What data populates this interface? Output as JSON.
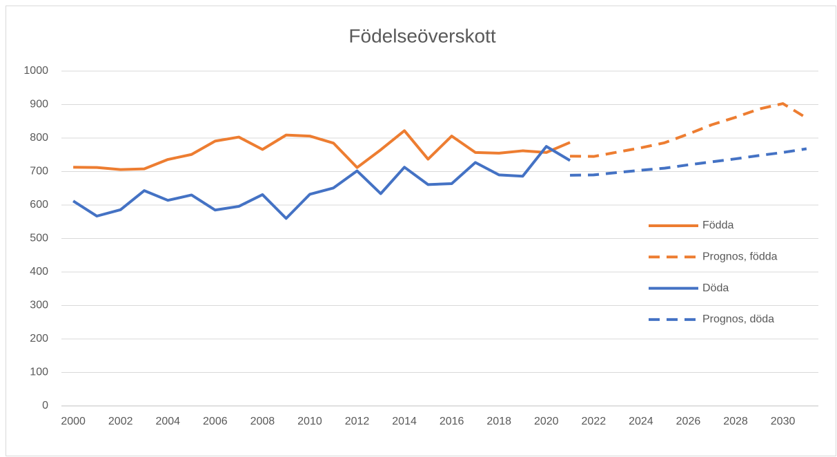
{
  "chart_data": {
    "type": "line",
    "title": "Födelseöverskott",
    "x": [
      2000,
      2001,
      2002,
      2003,
      2004,
      2005,
      2006,
      2007,
      2008,
      2009,
      2010,
      2011,
      2012,
      2013,
      2014,
      2015,
      2016,
      2017,
      2018,
      2019,
      2020,
      2021,
      2022,
      2023,
      2024,
      2025,
      2026,
      2027,
      2028,
      2029,
      2030,
      2031
    ],
    "xlim": [
      1999.5,
      2031.5
    ],
    "xticks": [
      2000,
      2002,
      2004,
      2006,
      2008,
      2010,
      2012,
      2014,
      2016,
      2018,
      2020,
      2022,
      2024,
      2026,
      2028,
      2030
    ],
    "ylim": [
      0,
      1000
    ],
    "yticks": [
      0,
      100,
      200,
      300,
      400,
      500,
      600,
      700,
      800,
      900,
      1000
    ],
    "grid": true,
    "legend": "right",
    "series": [
      {
        "name": "Födda",
        "color": "#ed7d31",
        "dashed": false,
        "values": [
          713,
          712,
          706,
          708,
          736,
          751,
          791,
          803,
          766,
          809,
          806,
          785,
          712,
          765,
          822,
          737,
          806,
          757,
          755,
          762,
          757,
          787,
          null,
          null,
          null,
          null,
          null,
          null,
          null,
          null,
          null,
          null
        ]
      },
      {
        "name": "Prognos, födda",
        "color": "#ed7d31",
        "dashed": true,
        "values": [
          null,
          null,
          null,
          null,
          null,
          null,
          null,
          null,
          null,
          null,
          null,
          null,
          null,
          null,
          null,
          null,
          null,
          null,
          null,
          null,
          null,
          746,
          745,
          758,
          771,
          786,
          812,
          840,
          862,
          887,
          903,
          860
        ]
      },
      {
        "name": "Döda",
        "color": "#4472c4",
        "dashed": false,
        "values": [
          612,
          567,
          586,
          643,
          614,
          630,
          585,
          596,
          631,
          560,
          632,
          651,
          702,
          634,
          713,
          661,
          664,
          727,
          690,
          686,
          775,
          733,
          null,
          null,
          null,
          null,
          null,
          null,
          null,
          null,
          null,
          null
        ]
      },
      {
        "name": "Prognos, döda",
        "color": "#4472c4",
        "dashed": true,
        "values": [
          null,
          null,
          null,
          null,
          null,
          null,
          null,
          null,
          null,
          null,
          null,
          null,
          null,
          null,
          null,
          null,
          null,
          null,
          null,
          null,
          null,
          689,
          690,
          697,
          704,
          710,
          720,
          729,
          738,
          748,
          757,
          768
        ]
      }
    ]
  }
}
